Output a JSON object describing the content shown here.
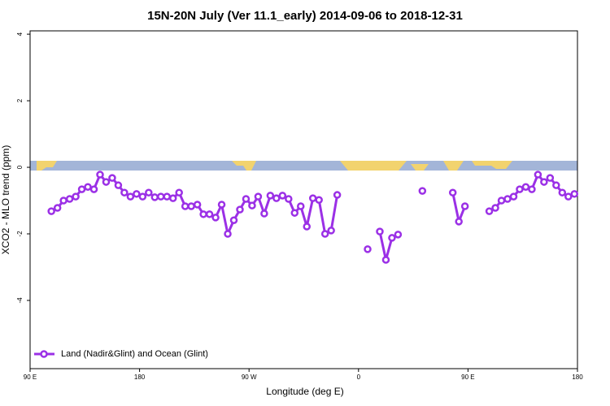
{
  "chart_data": {
    "type": "line",
    "title": "15N-20N July (Ver 11.1_early)   2014-09-06 to 2018-12-31",
    "x_label": "Longitude (deg E)",
    "y_label": "XCO2 - MLO trend (ppm)",
    "x": [
      107.5,
      112.5,
      117.5,
      122.5,
      127.5,
      132.5,
      137.5,
      142.5,
      147.5,
      152.5,
      157.5,
      162.5,
      167.5,
      172.5,
      177.5,
      182.5,
      187.5,
      192.5,
      197.5,
      202.5,
      207.5,
      212.5,
      217.5,
      222.5,
      227.5,
      232.5,
      237.5,
      242.5,
      247.5,
      252.5,
      257.5,
      262.5,
      267.5,
      272.5,
      277.5,
      282.5,
      287.5,
      292.5,
      297.5,
      302.5,
      307.5,
      312.5,
      317.5,
      322.5,
      327.5,
      332.5,
      337.5,
      342.5,
      347.5,
      352.5,
      357.5,
      362.5,
      367.5,
      372.5,
      377.5,
      382.5,
      387.5,
      392.5,
      397.5,
      402.5,
      407.5,
      412.5,
      417.5,
      422.5,
      427.5,
      432.5,
      437.5,
      442.5,
      447.5,
      452.5,
      457.5,
      462.5,
      467.5,
      472.5,
      477.5,
      482.5,
      487.5,
      492.5,
      497.5,
      502.5,
      507.5,
      512.5,
      517.5,
      522.5,
      527.5,
      532.5,
      537.5
    ],
    "series": [
      {
        "name": "Land (Nadir&Glint) and Ocean (Glint)",
        "color": "#9b30e6",
        "values": [
          -1.32,
          -1.22,
          -1.0,
          -0.95,
          -0.88,
          -0.66,
          -0.59,
          -0.66,
          -0.22,
          -0.44,
          -0.32,
          -0.54,
          -0.76,
          -0.88,
          -0.8,
          -0.88,
          -0.76,
          -0.9,
          -0.88,
          -0.88,
          -0.93,
          -0.76,
          -1.17,
          -1.17,
          -1.12,
          -1.41,
          -1.41,
          -1.51,
          -1.12,
          -2.0,
          -1.59,
          -1.27,
          -0.95,
          -1.15,
          -0.88,
          -1.39,
          -0.85,
          -0.93,
          -0.85,
          -0.95,
          -1.37,
          -1.17,
          -1.78,
          -0.93,
          -0.98,
          -2.0,
          -1.9,
          -0.83,
          null,
          null,
          null,
          null,
          -2.46,
          null,
          -1.93,
          -2.78,
          -2.12,
          -2.02,
          null,
          null,
          null,
          -0.71,
          null,
          null,
          null,
          null,
          -0.76,
          -1.63,
          -1.17,
          null,
          null,
          null,
          -1.32,
          -1.22,
          -1.0,
          -0.95,
          -0.88,
          -0.66,
          -0.59,
          -0.66,
          -0.22,
          -0.44,
          -0.32,
          -0.54,
          -0.76,
          -0.88,
          -0.8
        ]
      }
    ],
    "xlim": [
      90,
      540
    ],
    "ylim": [
      -6.05,
      4.1
    ],
    "xticks": [
      {
        "value": 90,
        "label": "90 E"
      },
      180,
      {
        "value": 270,
        "label": "90 W"
      },
      {
        "value": 360,
        "label": "0"
      },
      {
        "value": 450,
        "label": "90 E"
      },
      {
        "value": 540,
        "label": "180"
      }
    ],
    "yticks": [
      -4,
      -2,
      0,
      2,
      4
    ],
    "legend": "bottomleft"
  }
}
